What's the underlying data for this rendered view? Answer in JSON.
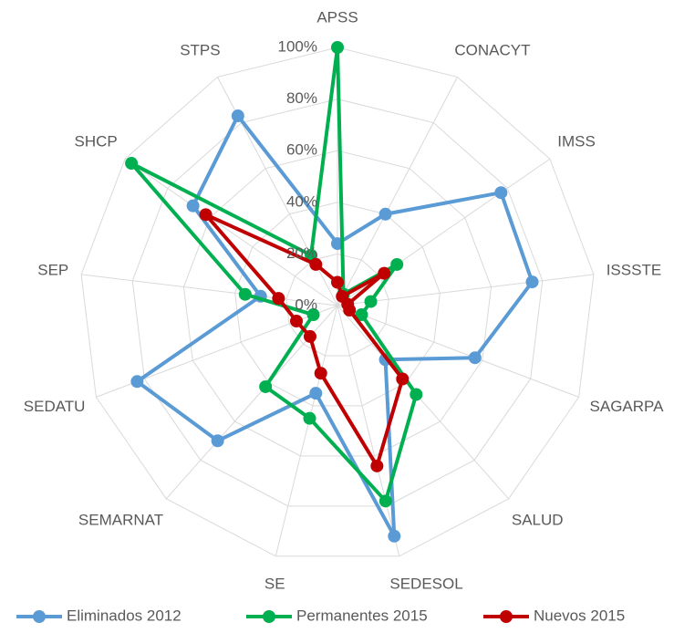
{
  "chart_data": {
    "type": "radar",
    "categories": [
      "APSS",
      "CONACYT",
      "IMSS",
      "ISSSTE",
      "SAGARPA",
      "SALUD",
      "SEDESOL",
      "SE",
      "SEMARNAT",
      "SEDATU",
      "SEP",
      "SHCP",
      "STPS"
    ],
    "series": [
      {
        "name": "Eliminados 2012",
        "color": "#5b9bd5",
        "values": [
          24,
          40,
          77,
          76,
          57,
          28,
          92,
          35,
          70,
          83,
          30,
          68,
          83
        ]
      },
      {
        "name": "Permanentes 2015",
        "color": "#00b050",
        "values": [
          100,
          5,
          28,
          13,
          10,
          46,
          78,
          45,
          42,
          10,
          36,
          97,
          22
        ]
      },
      {
        "name": "Nuevos 2015",
        "color": "#c00000",
        "values": [
          9,
          4,
          22,
          4,
          5,
          38,
          64,
          27,
          16,
          17,
          23,
          62,
          18
        ]
      }
    ],
    "ylim": [
      0,
      100
    ],
    "yticks": [
      {
        "value": 0,
        "label": "0%"
      },
      {
        "value": 20,
        "label": "20%"
      },
      {
        "value": 40,
        "label": "40%"
      },
      {
        "value": 60,
        "label": "60%"
      },
      {
        "value": 80,
        "label": "80%"
      },
      {
        "value": 100,
        "label": "100%"
      }
    ],
    "grid": true,
    "legend": "bottom"
  }
}
